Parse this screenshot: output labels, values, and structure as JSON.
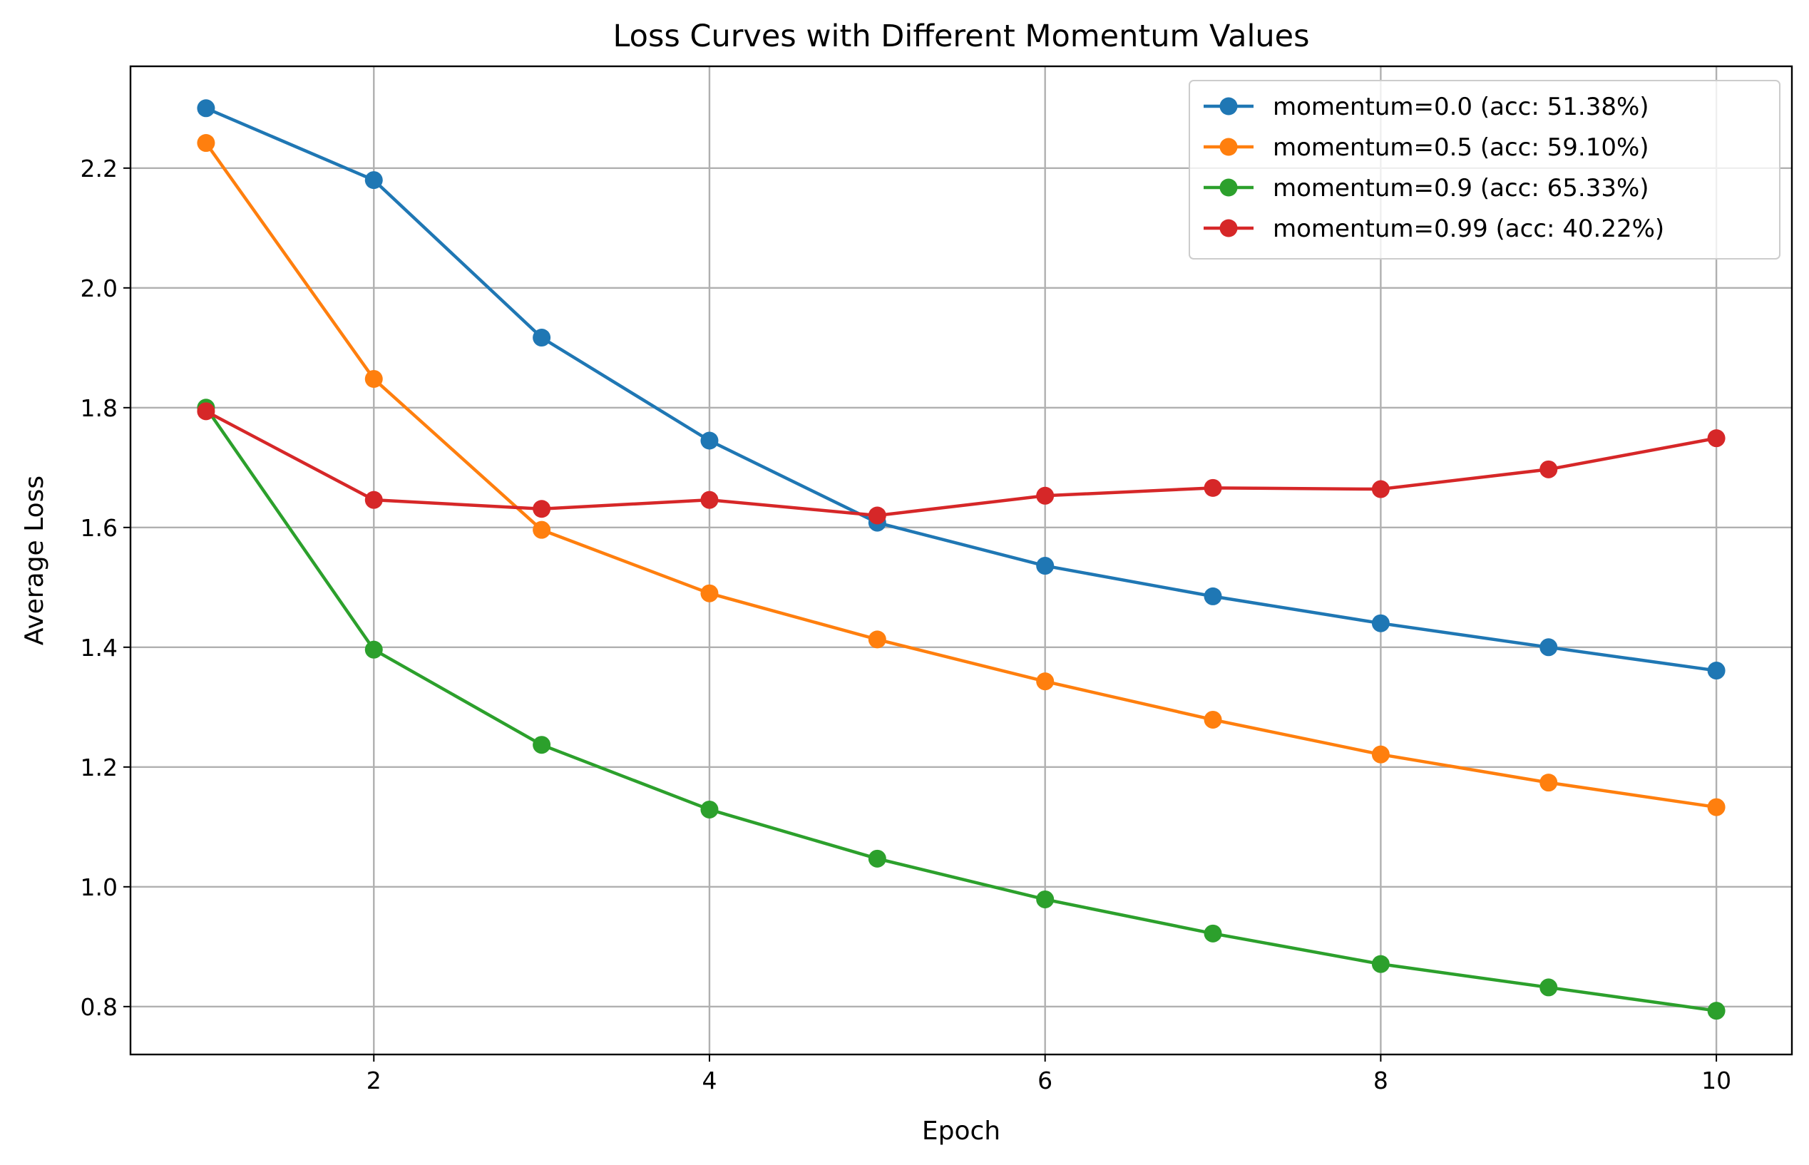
{
  "chart_data": {
    "type": "line",
    "title": "Loss Curves with Different Momentum Values",
    "xlabel": "Epoch",
    "ylabel": "Average Loss",
    "x": [
      1,
      2,
      3,
      4,
      5,
      6,
      7,
      8,
      9,
      10
    ],
    "xlim": [
      0.55,
      10.45
    ],
    "ylim": [
      0.72,
      2.37
    ],
    "xticks": [
      2,
      4,
      6,
      8,
      10
    ],
    "xtick_labels": [
      "2",
      "4",
      "6",
      "8",
      "10"
    ],
    "yticks": [
      0.8,
      1.0,
      1.2,
      1.4,
      1.6,
      1.8,
      2.0,
      2.2
    ],
    "ytick_labels": [
      "0.8",
      "1.0",
      "1.2",
      "1.4",
      "1.6",
      "1.8",
      "2.0",
      "2.2"
    ],
    "grid": true,
    "legend_position": "top-right",
    "series": [
      {
        "name": "momentum=0.0 (acc: 51.38%)",
        "color": "#1f77b4",
        "values": [
          2.3,
          2.18,
          1.917,
          1.745,
          1.608,
          1.536,
          1.485,
          1.44,
          1.4,
          1.361
        ]
      },
      {
        "name": "momentum=0.5 (acc: 59.10%)",
        "color": "#ff7f0e",
        "values": [
          2.242,
          1.848,
          1.596,
          1.49,
          1.413,
          1.343,
          1.279,
          1.221,
          1.174,
          1.133
        ]
      },
      {
        "name": "momentum=0.9 (acc: 65.33%)",
        "color": "#2ca02c",
        "values": [
          1.8,
          1.396,
          1.237,
          1.129,
          1.047,
          0.979,
          0.922,
          0.871,
          0.832,
          0.793
        ]
      },
      {
        "name": "momentum=0.99 (acc: 40.22%)",
        "color": "#d62728",
        "values": [
          1.794,
          1.646,
          1.631,
          1.646,
          1.62,
          1.653,
          1.666,
          1.664,
          1.697,
          1.749
        ]
      }
    ]
  }
}
